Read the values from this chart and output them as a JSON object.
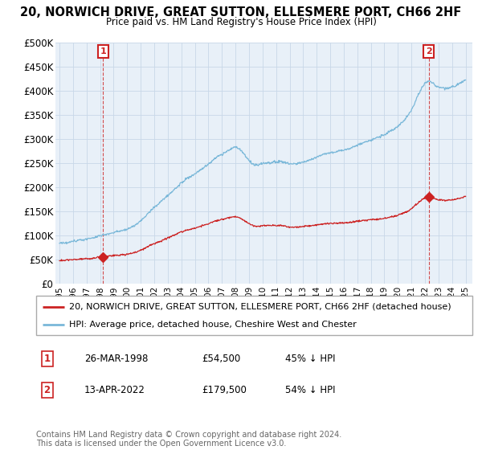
{
  "title_line1": "20, NORWICH DRIVE, GREAT SUTTON, ELLESMERE PORT, CH66 2HF",
  "title_line2": "Price paid vs. HM Land Registry's House Price Index (HPI)",
  "ylim": [
    0,
    500000
  ],
  "yticks": [
    0,
    50000,
    100000,
    150000,
    200000,
    250000,
    300000,
    350000,
    400000,
    450000,
    500000
  ],
  "ytick_labels": [
    "£0",
    "£50K",
    "£100K",
    "£150K",
    "£200K",
    "£250K",
    "£300K",
    "£350K",
    "£400K",
    "£450K",
    "£500K"
  ],
  "hpi_color": "#7ab8d9",
  "price_color": "#cc2222",
  "annotation_box_color": "#cc2222",
  "grid_color": "#c8d8e8",
  "plot_bg_color": "#e8f0f8",
  "background_color": "#ffffff",
  "legend_label_price": "20, NORWICH DRIVE, GREAT SUTTON, ELLESMERE PORT, CH66 2HF (detached house)",
  "legend_label_hpi": "HPI: Average price, detached house, Cheshire West and Chester",
  "sale1_date": "26-MAR-1998",
  "sale1_price": "£54,500",
  "sale1_hpi": "45% ↓ HPI",
  "sale1_year": 1998.22,
  "sale1_value": 54500,
  "sale2_date": "13-APR-2022",
  "sale2_price": "£179,500",
  "sale2_hpi": "54% ↓ HPI",
  "sale2_year": 2022.28,
  "sale2_value": 179500,
  "footer": "Contains HM Land Registry data © Crown copyright and database right 2024.\nThis data is licensed under the Open Government Licence v3.0.",
  "xlim_start": 1994.7,
  "xlim_end": 2025.5
}
